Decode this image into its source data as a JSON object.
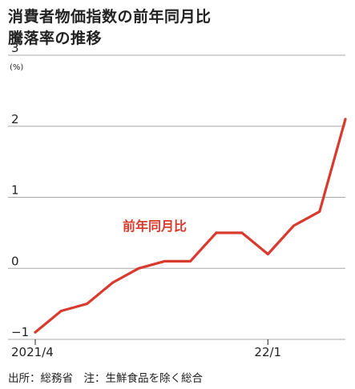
{
  "title_lines": [
    "消費者物価指数の前年同月比",
    "騰落率の推移"
  ],
  "footer": "出所：総務省　注：生鮮食品を除く総合",
  "colors": {
    "series": "#d93a2e",
    "grid": "#aaaaaa",
    "text": "#222222"
  },
  "chart_data": {
    "type": "line",
    "title": "消費者物価指数の前年同月比騰落率の推移",
    "ylabel": "(%)",
    "ylim": [
      -1,
      3
    ],
    "yticks": [
      3,
      2,
      1,
      0,
      -1
    ],
    "ytick_labels": [
      "3",
      "2",
      "1",
      "0",
      "−1"
    ],
    "xtick_labels": [
      {
        "at": "2021-04",
        "label": "2021/4"
      },
      {
        "at": "2022-01",
        "label": "22/1"
      }
    ],
    "grid": "horizontal",
    "series": [
      {
        "name": "前年同月比",
        "x": [
          "2021-04",
          "2021-05",
          "2021-06",
          "2021-07",
          "2021-08",
          "2021-09",
          "2021-10",
          "2021-11",
          "2021-12",
          "2022-01",
          "2022-02",
          "2022-03",
          "2022-04"
        ],
        "values": [
          -0.9,
          -0.6,
          -0.5,
          -0.2,
          0.0,
          0.1,
          0.1,
          0.5,
          0.5,
          0.2,
          0.6,
          0.8,
          2.1
        ]
      }
    ]
  }
}
